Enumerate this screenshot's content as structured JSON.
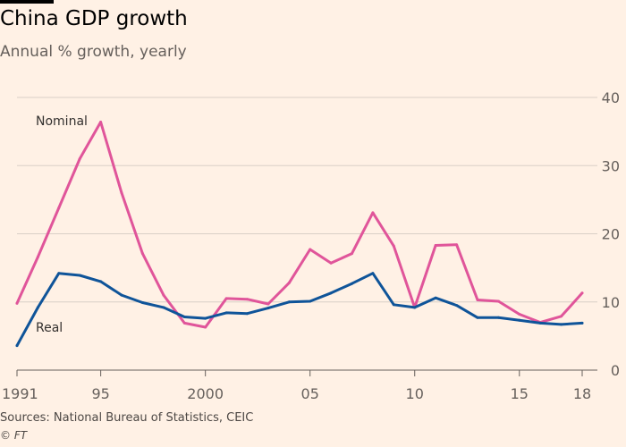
{
  "title": "China GDP growth",
  "subtitle": "Annual % growth, yearly",
  "source": "Sources: National Bureau of Statistics, CEIC",
  "copyright": "© FT",
  "colors": {
    "background": "#fff1e5",
    "nominal": "#e0559a",
    "real": "#0f5499",
    "grid": "#d9cfc6"
  },
  "chart_data": {
    "type": "line",
    "title": "China GDP growth",
    "subtitle": "Annual % growth, yearly",
    "xlim": [
      1991,
      2018
    ],
    "ylim": [
      0,
      40
    ],
    "y_ticks": [
      0,
      10,
      20,
      30,
      40
    ],
    "y_tick_labels": [
      "0",
      "10",
      "20",
      "30",
      "40"
    ],
    "x_ticks": [
      1991,
      1995,
      2000,
      2005,
      2010,
      2015,
      2018
    ],
    "x_tick_labels": [
      "1991",
      "95",
      "2000",
      "05",
      "10",
      "15",
      "18"
    ],
    "x": [
      1991,
      1992,
      1993,
      1994,
      1995,
      1996,
      1997,
      1998,
      1999,
      2000,
      2001,
      2002,
      2003,
      2004,
      2005,
      2006,
      2007,
      2008,
      2009,
      2010,
      2011,
      2012,
      2013,
      2014,
      2015,
      2016,
      2017,
      2018
    ],
    "series": [
      {
        "name": "Nominal",
        "color": "#e0559a",
        "values": [
          9.8,
          16.6,
          23.8,
          31.0,
          36.4,
          26.0,
          17.1,
          11.0,
          6.9,
          6.3,
          10.5,
          10.4,
          9.7,
          12.8,
          17.7,
          15.7,
          17.1,
          23.1,
          18.2,
          9.2,
          18.3,
          18.4,
          10.3,
          10.1,
          8.2,
          7.0,
          7.9,
          11.3
        ]
      },
      {
        "name": "Real",
        "color": "#0f5499",
        "values": [
          3.6,
          9.2,
          14.2,
          13.9,
          13.0,
          11.0,
          9.9,
          9.2,
          7.8,
          7.6,
          8.4,
          8.3,
          9.1,
          10.0,
          10.1,
          11.3,
          12.7,
          14.2,
          9.6,
          9.2,
          10.6,
          9.5,
          7.7,
          7.7,
          7.3,
          6.9,
          6.7,
          6.9
        ]
      }
    ],
    "grid": true,
    "y_axis_side": "right"
  }
}
